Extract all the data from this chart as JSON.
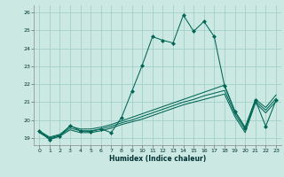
{
  "title": "",
  "xlabel": "Humidex (Indice chaleur)",
  "ylabel": "",
  "xlim": [
    -0.5,
    23.5
  ],
  "ylim": [
    18.6,
    26.4
  ],
  "xticks": [
    0,
    1,
    2,
    3,
    4,
    5,
    6,
    7,
    8,
    9,
    10,
    11,
    12,
    13,
    14,
    15,
    16,
    17,
    18,
    19,
    20,
    21,
    22,
    23
  ],
  "yticks": [
    19,
    20,
    21,
    22,
    23,
    24,
    25,
    26
  ],
  "background_color": "#cce8e3",
  "grid_color": "#99ccc4",
  "line_color": "#006655",
  "lines": [
    {
      "x": [
        0,
        1,
        2,
        3,
        4,
        5,
        6,
        7,
        8,
        9,
        10,
        11,
        12,
        13,
        14,
        15,
        16,
        17,
        18,
        19,
        20,
        21,
        22,
        23
      ],
      "y": [
        19.4,
        18.9,
        19.1,
        19.7,
        19.4,
        19.35,
        19.5,
        19.3,
        20.15,
        21.6,
        23.05,
        24.65,
        24.45,
        24.3,
        25.85,
        24.95,
        25.5,
        24.65,
        21.9,
        20.5,
        19.55,
        21.1,
        19.65,
        21.1
      ],
      "marker": "D",
      "markersize": 2.5
    },
    {
      "x": [
        0,
        1,
        2,
        3,
        4,
        5,
        6,
        7,
        8,
        9,
        10,
        11,
        12,
        13,
        14,
        15,
        16,
        17,
        18,
        19,
        20,
        21,
        22,
        23
      ],
      "y": [
        19.4,
        19.05,
        19.2,
        19.65,
        19.5,
        19.5,
        19.6,
        19.75,
        19.95,
        20.15,
        20.35,
        20.55,
        20.75,
        20.95,
        21.15,
        21.35,
        21.55,
        21.75,
        21.95,
        20.5,
        19.6,
        21.15,
        20.7,
        21.4
      ]
    },
    {
      "x": [
        0,
        1,
        2,
        3,
        4,
        5,
        6,
        7,
        8,
        9,
        10,
        11,
        12,
        13,
        14,
        15,
        16,
        17,
        18,
        19,
        20,
        21,
        22,
        23
      ],
      "y": [
        19.35,
        19.0,
        19.15,
        19.55,
        19.4,
        19.4,
        19.5,
        19.65,
        19.85,
        20.0,
        20.2,
        20.4,
        20.6,
        20.8,
        21.0,
        21.15,
        21.35,
        21.5,
        21.65,
        20.35,
        19.45,
        21.05,
        20.55,
        21.2
      ]
    },
    {
      "x": [
        0,
        1,
        2,
        3,
        4,
        5,
        6,
        7,
        8,
        9,
        10,
        11,
        12,
        13,
        14,
        15,
        16,
        17,
        18,
        19,
        20,
        21,
        22,
        23
      ],
      "y": [
        19.3,
        18.95,
        19.1,
        19.45,
        19.3,
        19.3,
        19.4,
        19.55,
        19.75,
        19.9,
        20.05,
        20.25,
        20.45,
        20.65,
        20.85,
        21.0,
        21.15,
        21.3,
        21.45,
        20.2,
        19.3,
        20.95,
        20.4,
        21.05
      ]
    }
  ]
}
